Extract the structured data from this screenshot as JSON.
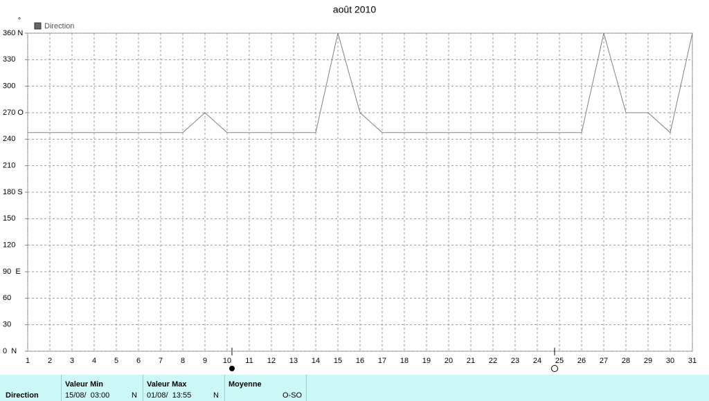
{
  "chart_data": {
    "type": "line",
    "title": "août 2010",
    "y_label": "°",
    "x": [
      1,
      2,
      3,
      4,
      5,
      6,
      7,
      8,
      9,
      10,
      11,
      12,
      13,
      14,
      15,
      16,
      17,
      18,
      19,
      20,
      21,
      22,
      23,
      24,
      25,
      26,
      27,
      28,
      29,
      30,
      31
    ],
    "series": [
      {
        "name": "Direction",
        "color": "#808080",
        "values": [
          247.5,
          247.5,
          247.5,
          247.5,
          247.5,
          247.5,
          247.5,
          247.5,
          270,
          247.5,
          247.5,
          247.5,
          247.5,
          247.5,
          360,
          270,
          247.5,
          247.5,
          247.5,
          247.5,
          247.5,
          247.5,
          247.5,
          247.5,
          247.5,
          247.5,
          360,
          270,
          270,
          247.5,
          360
        ]
      }
    ],
    "xlim": [
      1,
      31
    ],
    "xticks": [
      1,
      2,
      3,
      4,
      5,
      6,
      7,
      8,
      9,
      10,
      11,
      12,
      13,
      14,
      15,
      16,
      17,
      18,
      19,
      20,
      21,
      22,
      23,
      24,
      25,
      26,
      27,
      28,
      29,
      30,
      31
    ],
    "ylim": [
      0,
      360
    ],
    "yticks": [
      {
        "value": 0,
        "label": "0  N"
      },
      30,
      60,
      {
        "value": 90,
        "label": "90  E"
      },
      120,
      150,
      {
        "value": 180,
        "label": "180 S"
      },
      210,
      240,
      {
        "value": 270,
        "label": "270 O"
      },
      300,
      330,
      {
        "value": 360,
        "label": "360 N"
      }
    ],
    "grid": true,
    "legend": "top-left"
  },
  "info_table": {
    "row_label": "Direction",
    "columns": [
      {
        "header": "Valeur Min",
        "value": "15/08/  03:00",
        "direction": "N"
      },
      {
        "header": "Valeur Max",
        "value": "01/08/  13:55",
        "direction": "N"
      },
      {
        "header": "Moyenne",
        "direction": "O-SO"
      }
    ]
  }
}
